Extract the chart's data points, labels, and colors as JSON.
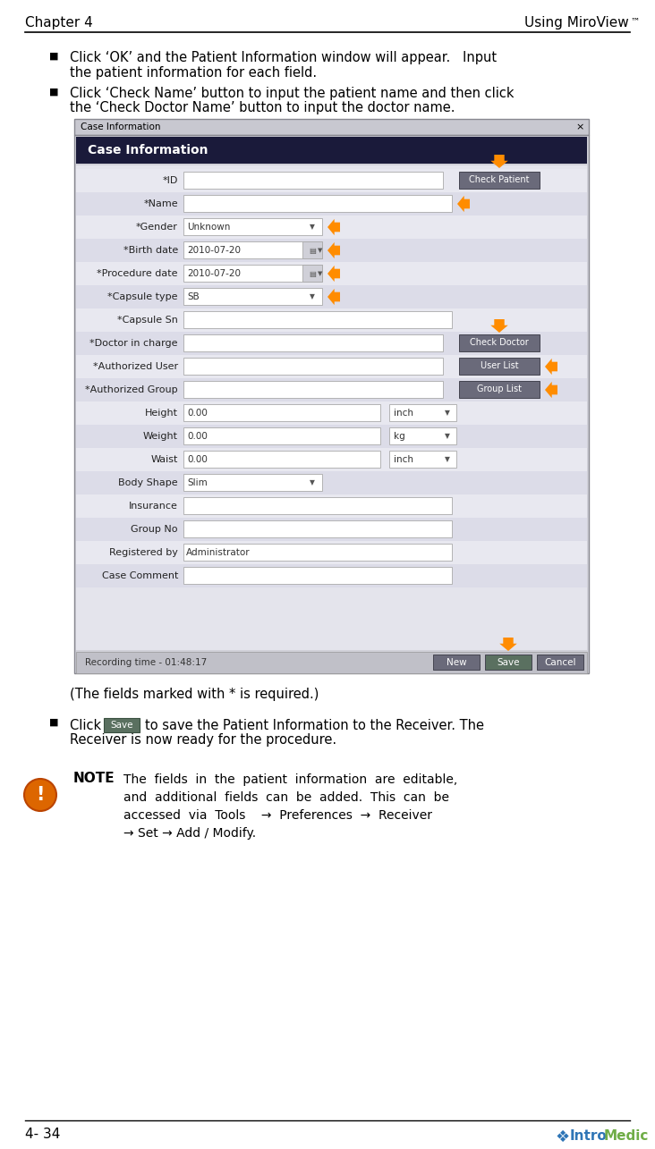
{
  "bg_color": "#ffffff",
  "header_text_left": "Chapter 4",
  "header_text_right": "Using MiroView™",
  "footer_text_left": "4- 34",
  "bullet1_line1": "Click ‘OK’ and the Patient Information window will appear.   Input",
  "bullet1_line2": "the patient information for each field.",
  "bullet2_line1": "Click ‘Check Name’ button to input the patient name and then click",
  "bullet2_line2": "the ‘Check Doctor Name’ button to input the doctor name.",
  "dialog_title": "Case Information",
  "dialog_header": "Case Information",
  "fields": [
    {
      "label": "*ID",
      "type": "text_btn",
      "value": "",
      "btn": "Check Patient"
    },
    {
      "label": "*Name",
      "type": "text_arrow",
      "value": ""
    },
    {
      "label": "*Gender",
      "type": "dropdown_arrow",
      "value": "Unknown"
    },
    {
      "label": "*Birth date",
      "type": "dropdown_cal_arrow",
      "value": "2010-07-20"
    },
    {
      "label": "*Procedure date",
      "type": "dropdown_cal_arrow",
      "value": "2010-07-20"
    },
    {
      "label": "*Capsule type",
      "type": "dropdown_arrow",
      "value": "SB"
    },
    {
      "label": "*Capsule Sn",
      "type": "text",
      "value": ""
    },
    {
      "label": "*Doctor in charge",
      "type": "text_btn",
      "value": "",
      "btn": "Check Doctor"
    },
    {
      "label": "*Authorized User",
      "type": "text_btn_arrow",
      "value": "",
      "btn": "User List"
    },
    {
      "label": "*Authorized Group",
      "type": "text_btn_arrow",
      "value": "",
      "btn": "Group List"
    },
    {
      "label": "Height",
      "type": "text_unit",
      "value": "0.00",
      "unit": "inch"
    },
    {
      "label": "Weight",
      "type": "text_unit",
      "value": "0.00",
      "unit": "kg"
    },
    {
      "label": "Waist",
      "type": "text_unit",
      "value": "0.00",
      "unit": "inch"
    },
    {
      "label": "Body Shape",
      "type": "dropdown",
      "value": "Slim"
    },
    {
      "label": "Insurance",
      "type": "text",
      "value": ""
    },
    {
      "label": "Group No",
      "type": "text",
      "value": ""
    },
    {
      "label": "Registered by",
      "type": "text_fixed",
      "value": "Administrator"
    },
    {
      "label": "Case Comment",
      "type": "text",
      "value": ""
    }
  ],
  "footer_recording": "Recording time - 01:48:17",
  "btn_new": "New",
  "btn_save": "Save",
  "btn_cancel": "Cancel",
  "required_note": "(The fields marked with * is required.)",
  "bullet3_pre": "Click",
  "bullet3_save_label": "Save",
  "bullet3_post1": "to save the Patient Information to the Receiver. The",
  "bullet3_post2": "Receiver is now ready for the procedure.",
  "note_label": "NOTE",
  "note_lines": [
    "The  fields  in  the  patient  information  are  editable,",
    "and  additional  fields  can  be  added.  This  can  be",
    "accessed  via  Tools    →  Preferences  →  Receiver",
    "→ Set → Add / Modify."
  ],
  "arrow_color": "#ff8c00",
  "dialog_title_bar_color": "#c8c8d0",
  "dialog_dark_header_color": "#1a1a3a",
  "dialog_body_color": "#d0d0d8",
  "dialog_content_color": "#e4e4ec",
  "field_bg": "#ffffff",
  "btn_color": "#6a6a7a",
  "btn_color_dark": "#555566",
  "save_btn_color": "#5a7a5a",
  "bottom_bar_color": "#c0c0c8",
  "note_icon_color": "#dd6600",
  "intro_blue": "#2e75b6",
  "intro_green": "#70ad47"
}
